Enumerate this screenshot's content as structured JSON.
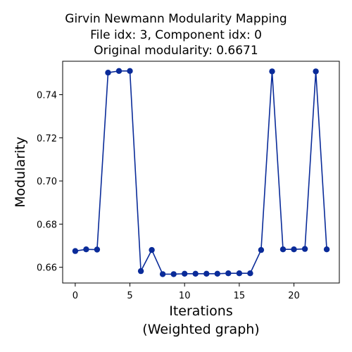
{
  "chart_data": {
    "type": "line",
    "title_lines": [
      "Girvin Newmann Modularity Mapping",
      "File idx: 3, Component idx: 0",
      "Original modularity: 0.6671"
    ],
    "xlabel_lines": [
      "Iterations",
      "(Weighted graph)"
    ],
    "ylabel": "Modularity",
    "x": [
      0,
      1,
      2,
      3,
      4,
      5,
      6,
      7,
      8,
      9,
      10,
      11,
      12,
      13,
      14,
      15,
      16,
      17,
      18,
      19,
      20,
      21,
      22,
      23
    ],
    "values": [
      0.6675,
      0.6683,
      0.6682,
      0.7502,
      0.751,
      0.751,
      0.6582,
      0.668,
      0.6568,
      0.6568,
      0.657,
      0.657,
      0.657,
      0.657,
      0.6572,
      0.6572,
      0.6572,
      0.668,
      0.7508,
      0.6683,
      0.6683,
      0.6685,
      0.7508,
      0.6683
    ],
    "xlim": [
      -1.15,
      24.15
    ],
    "ylim": [
      0.6527,
      0.7555
    ],
    "xticks": [
      0,
      5,
      10,
      15,
      20
    ],
    "xtick_labels": [
      "0",
      "5",
      "10",
      "15",
      "20"
    ],
    "yticks": [
      0.66,
      0.68,
      0.7,
      0.72,
      0.74
    ],
    "ytick_labels": [
      "0.66",
      "0.68",
      "0.70",
      "0.72",
      "0.74"
    ],
    "line_color": "#0a2b99",
    "marker_color": "#0a2b99",
    "grid": false
  }
}
